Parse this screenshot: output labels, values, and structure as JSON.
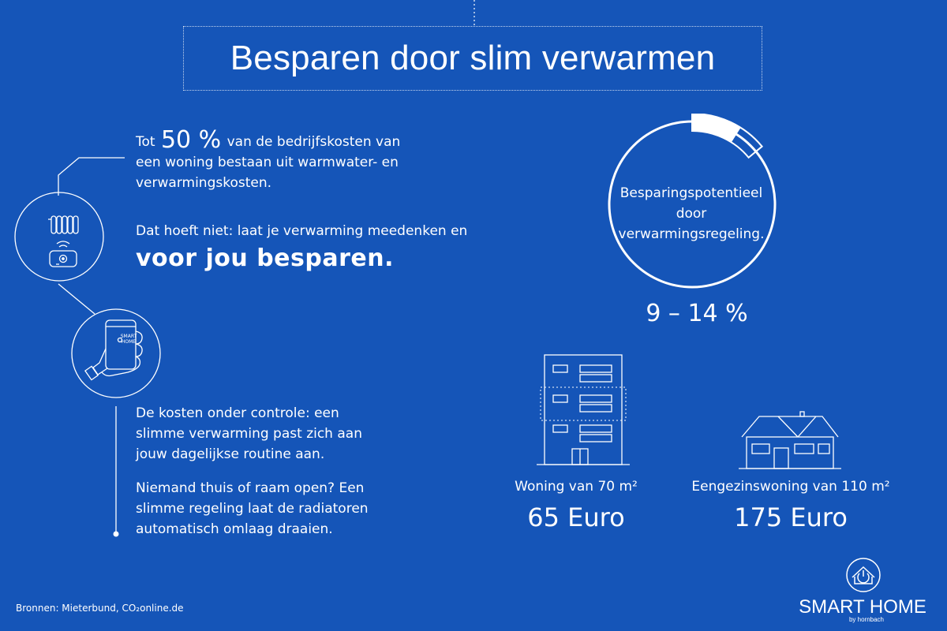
{
  "title": "Besparen door slim verwarmen",
  "intro": {
    "prefix": "Tot",
    "highlight": "50 %",
    "line1_rest": "van de bedrijfskosten van",
    "line2": "een woning bestaan uit warmwater- en",
    "line3": "verwarmingskosten."
  },
  "pitch": {
    "line1": "Dat hoeft niet: laat je verwarming meedenken en",
    "emphasis": "voor jou besparen."
  },
  "control": {
    "lines": [
      "De kosten onder controle: een",
      "slimme verwarming past zich aan",
      "jouw dagelijkse routine aan."
    ]
  },
  "automation": {
    "lines": [
      "Niemand thuis of raam open? Een",
      "slimme regeling laat de radiatoren",
      "automatisch omlaag draaien."
    ]
  },
  "savings_circle": {
    "lines": [
      "Besparingspotentieel",
      "door",
      "verwarmingsregeling."
    ],
    "range_label": "9 – 14 %",
    "min_pct": 9,
    "max_pct": 14
  },
  "apartment": {
    "label": "Woning van 70 m²",
    "value": "65 Euro"
  },
  "house": {
    "label": "Eengezinswoning van 110 m²",
    "value": "175 Euro"
  },
  "phone_screen": {
    "brand": "SMART HOME"
  },
  "sources": "Bronnen: Mieterbund, CO₂online.de",
  "logo": {
    "name": "SMART HOME",
    "sub": "by hornbach"
  },
  "colors": {
    "background": "#1555b8",
    "foreground": "#ffffff"
  },
  "icons": [
    "radiator-icon",
    "thermostat-icon",
    "phone-hand-icon",
    "apartment-building-icon",
    "house-icon",
    "power-house-logo-icon"
  ]
}
